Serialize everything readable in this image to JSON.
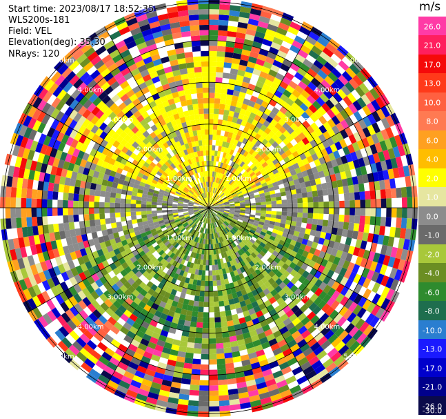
{
  "header": {
    "start_time": "Start time: 2023/08/17 18:52:35",
    "instrument": "WLS200s-181",
    "field": "Field: VEL",
    "elevation": "Elevation(deg): 35.30",
    "nrays": "NRays: 120"
  },
  "colorbar": {
    "unit": "m/s",
    "ticks": [
      "26.0",
      "21.0",
      "17.0",
      "13.0",
      "10.0",
      "8.0",
      "6.0",
      "4.0",
      "2.0",
      "1.0",
      "0.0",
      "-1.0",
      "-2.0",
      "-4.0",
      "-6.0",
      "-8.0",
      "-10.0",
      "-13.0",
      "-17.0",
      "-21.0",
      "-26.0",
      "-30.0"
    ],
    "colors": [
      "#ff3ba6",
      "#ff1f5e",
      "#f50a0a",
      "#ff3a1a",
      "#ff6040",
      "#ff7a52",
      "#ffa020",
      "#ffbd00",
      "#ffff00",
      "#e6e6a0",
      "#8c8c8c",
      "#6a6a6a",
      "#a8c83a",
      "#6b8e23",
      "#2e8b2e",
      "#1e6e4e",
      "#2a7ed0",
      "#1a1aff",
      "#0000cc",
      "#00008b",
      "#0a0a4a"
    ]
  },
  "range_rings": {
    "labels": [
      "1.00km",
      "2.00km",
      "3.00km",
      "4.00km",
      "5.00km"
    ]
  },
  "chart_data": {
    "type": "heatmap",
    "title": "",
    "projection": "PPI (polar)",
    "field": "VEL",
    "units": "m/s",
    "nrays": 120,
    "elevation_deg": 35.3,
    "range_km_max": 5.0,
    "range_rings_km": [
      1,
      2,
      3,
      4,
      5
    ],
    "color_levels": [
      -30,
      -26,
      -21,
      -17,
      -13,
      -10,
      -8,
      -6,
      -4,
      -2,
      -1,
      0,
      1,
      2,
      4,
      6,
      8,
      10,
      13,
      17,
      21,
      26
    ],
    "pattern": {
      "near_range_north": "positive 2-6 m/s (yellow/orange)",
      "near_range_south": "negative -2 to -6 m/s (olive/green)",
      "east_west": "near zero (gray)",
      "far_range": "noisy, all levels"
    }
  }
}
